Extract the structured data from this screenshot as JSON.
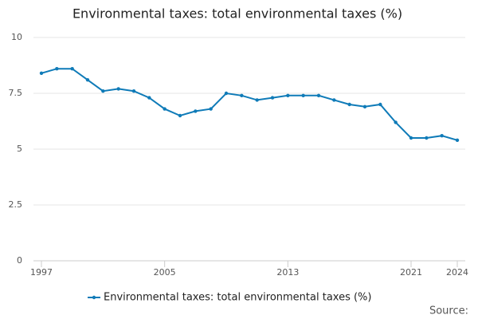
{
  "chart_data": {
    "type": "line",
    "title": "Environmental taxes: total environmental taxes (%)",
    "x": [
      1997,
      1998,
      1999,
      2000,
      2001,
      2002,
      2003,
      2004,
      2005,
      2006,
      2007,
      2008,
      2009,
      2010,
      2011,
      2012,
      2013,
      2014,
      2015,
      2016,
      2017,
      2018,
      2019,
      2020,
      2021,
      2022,
      2023,
      2024
    ],
    "series": [
      {
        "name": "Environmental taxes: total environmental taxes (%)",
        "color": "#0f7bb8",
        "values": [
          8.4,
          8.6,
          8.6,
          8.1,
          7.6,
          7.7,
          7.6,
          7.3,
          6.8,
          6.5,
          6.7,
          6.8,
          7.5,
          7.4,
          7.2,
          7.3,
          7.4,
          7.4,
          7.4,
          7.2,
          7.0,
          6.9,
          7.0,
          6.2,
          5.5,
          5.5,
          5.6,
          5.4
        ]
      }
    ],
    "xlim": [
      1997,
      2024
    ],
    "xticks": [
      1997,
      2005,
      2013,
      2021,
      2024
    ],
    "ylim": [
      0,
      10
    ],
    "yticks": [
      0,
      2.5,
      5,
      7.5,
      10
    ],
    "grid": true,
    "source": "Source:"
  }
}
